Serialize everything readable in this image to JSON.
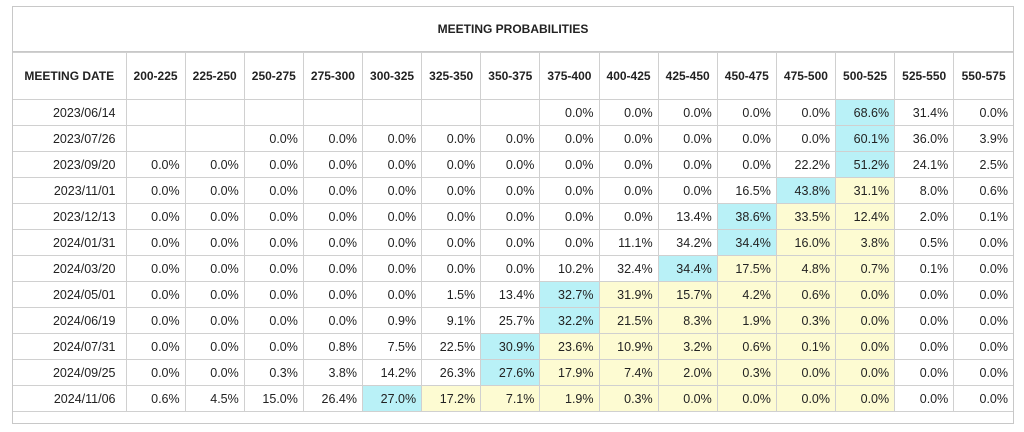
{
  "chart_data": {
    "type": "table",
    "title": "MEETING PROBABILITIES",
    "row_header_label": "MEETING DATE",
    "columns": [
      "200-225",
      "225-250",
      "250-275",
      "275-300",
      "300-325",
      "325-350",
      "350-375",
      "375-400",
      "400-425",
      "425-450",
      "450-475",
      "475-500",
      "500-525",
      "525-550",
      "550-575"
    ],
    "rows": [
      {
        "date": "2023/06/14",
        "values": [
          "",
          "",
          "",
          "",
          "",
          "",
          "",
          "0.0%",
          "0.0%",
          "0.0%",
          "0.0%",
          "0.0%",
          "68.6%",
          "31.4%",
          "0.0%"
        ],
        "max_index": 12
      },
      {
        "date": "2023/07/26",
        "values": [
          "",
          "",
          "0.0%",
          "0.0%",
          "0.0%",
          "0.0%",
          "0.0%",
          "0.0%",
          "0.0%",
          "0.0%",
          "0.0%",
          "0.0%",
          "60.1%",
          "36.0%",
          "3.9%"
        ],
        "max_index": 12
      },
      {
        "date": "2023/09/20",
        "values": [
          "0.0%",
          "0.0%",
          "0.0%",
          "0.0%",
          "0.0%",
          "0.0%",
          "0.0%",
          "0.0%",
          "0.0%",
          "0.0%",
          "0.0%",
          "22.2%",
          "51.2%",
          "24.1%",
          "2.5%"
        ],
        "max_index": 12
      },
      {
        "date": "2023/11/01",
        "values": [
          "0.0%",
          "0.0%",
          "0.0%",
          "0.0%",
          "0.0%",
          "0.0%",
          "0.0%",
          "0.0%",
          "0.0%",
          "0.0%",
          "16.5%",
          "43.8%",
          "31.1%",
          "8.0%",
          "0.6%"
        ],
        "max_index": 11
      },
      {
        "date": "2023/12/13",
        "values": [
          "0.0%",
          "0.0%",
          "0.0%",
          "0.0%",
          "0.0%",
          "0.0%",
          "0.0%",
          "0.0%",
          "0.0%",
          "13.4%",
          "38.6%",
          "33.5%",
          "12.4%",
          "2.0%",
          "0.1%"
        ],
        "max_index": 10
      },
      {
        "date": "2024/01/31",
        "values": [
          "0.0%",
          "0.0%",
          "0.0%",
          "0.0%",
          "0.0%",
          "0.0%",
          "0.0%",
          "0.0%",
          "11.1%",
          "34.2%",
          "34.4%",
          "16.0%",
          "3.8%",
          "0.5%",
          "0.0%"
        ],
        "max_index": 10
      },
      {
        "date": "2024/03/20",
        "values": [
          "0.0%",
          "0.0%",
          "0.0%",
          "0.0%",
          "0.0%",
          "0.0%",
          "0.0%",
          "10.2%",
          "32.4%",
          "34.4%",
          "17.5%",
          "4.8%",
          "0.7%",
          "0.1%",
          "0.0%"
        ],
        "max_index": 9
      },
      {
        "date": "2024/05/01",
        "values": [
          "0.0%",
          "0.0%",
          "0.0%",
          "0.0%",
          "0.0%",
          "1.5%",
          "13.4%",
          "32.7%",
          "31.9%",
          "15.7%",
          "4.2%",
          "0.6%",
          "0.0%",
          "0.0%",
          "0.0%"
        ],
        "max_index": 7
      },
      {
        "date": "2024/06/19",
        "values": [
          "0.0%",
          "0.0%",
          "0.0%",
          "0.0%",
          "0.9%",
          "9.1%",
          "25.7%",
          "32.2%",
          "21.5%",
          "8.3%",
          "1.9%",
          "0.3%",
          "0.0%",
          "0.0%",
          "0.0%"
        ],
        "max_index": 7
      },
      {
        "date": "2024/07/31",
        "values": [
          "0.0%",
          "0.0%",
          "0.0%",
          "0.8%",
          "7.5%",
          "22.5%",
          "30.9%",
          "23.6%",
          "10.9%",
          "3.2%",
          "0.6%",
          "0.1%",
          "0.0%",
          "0.0%",
          "0.0%"
        ],
        "max_index": 6
      },
      {
        "date": "2024/09/25",
        "values": [
          "0.0%",
          "0.0%",
          "0.3%",
          "3.8%",
          "14.2%",
          "26.3%",
          "27.6%",
          "17.9%",
          "7.4%",
          "2.0%",
          "0.3%",
          "0.0%",
          "0.0%",
          "0.0%",
          "0.0%"
        ],
        "max_index": 6
      },
      {
        "date": "2024/11/06",
        "values": [
          "0.6%",
          "4.5%",
          "15.0%",
          "26.4%",
          "27.0%",
          "17.2%",
          "7.1%",
          "1.9%",
          "0.3%",
          "0.0%",
          "0.0%",
          "0.0%",
          "0.0%",
          "0.0%",
          "0.0%"
        ],
        "max_index": 4
      }
    ],
    "current_target_column_index": 12,
    "colors": {
      "max_highlight": "#b9f1f7",
      "range_highlight": "#fdfbd2",
      "border": "#d0d0d0",
      "text": "#222222"
    }
  }
}
